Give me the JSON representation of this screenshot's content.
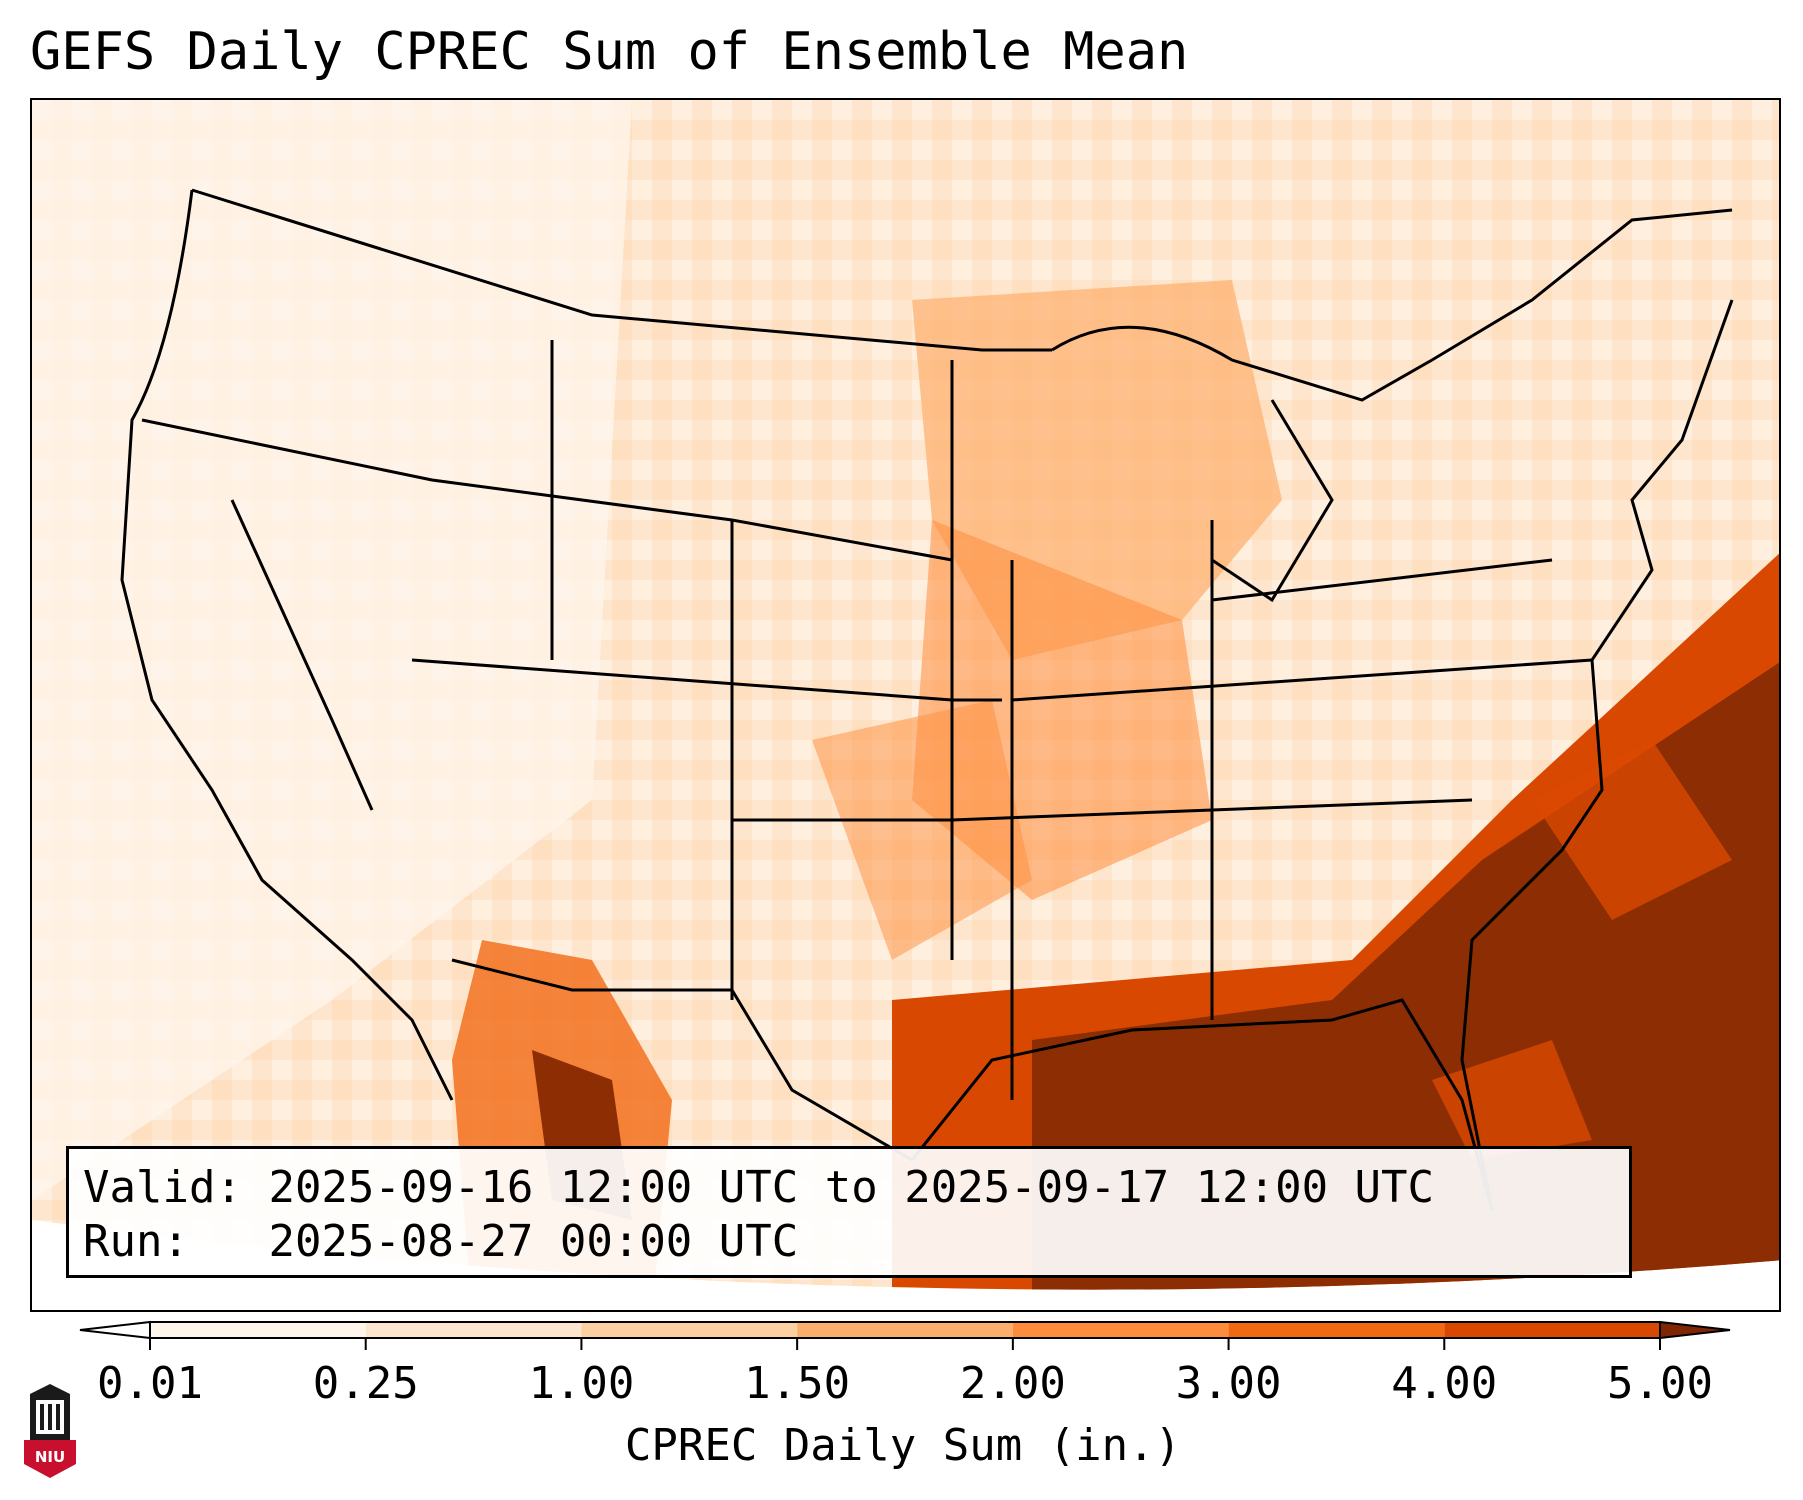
{
  "title": "GEFS Daily CPREC Sum of Ensemble Mean",
  "info": {
    "valid_label": "Valid:",
    "valid_value": "2025-09-16 12:00 UTC to 2025-09-17 12:00 UTC",
    "run_label": "Run:",
    "run_value": "2025-08-27 00:00 UTC"
  },
  "colorbar": {
    "label": "CPREC Daily Sum (in.)",
    "ticks": [
      "0.01",
      "0.25",
      "1.00",
      "1.50",
      "2.00",
      "3.00",
      "4.00",
      "5.00"
    ],
    "colors": [
      "#fff5eb",
      "#fee6ce",
      "#fdd0a2",
      "#fdae6b",
      "#fd8d3c",
      "#f16913",
      "#d94801",
      "#8c2d04"
    ],
    "extend_low_color": "#ffffff",
    "extend_high_color": "#7f2704"
  },
  "map": {
    "background_color": "#fde9d6",
    "ocean_outside_color": "#ffffff"
  },
  "logo": {
    "text": "NIU",
    "icon": "university-tower-icon",
    "color": "#c8102e"
  }
}
